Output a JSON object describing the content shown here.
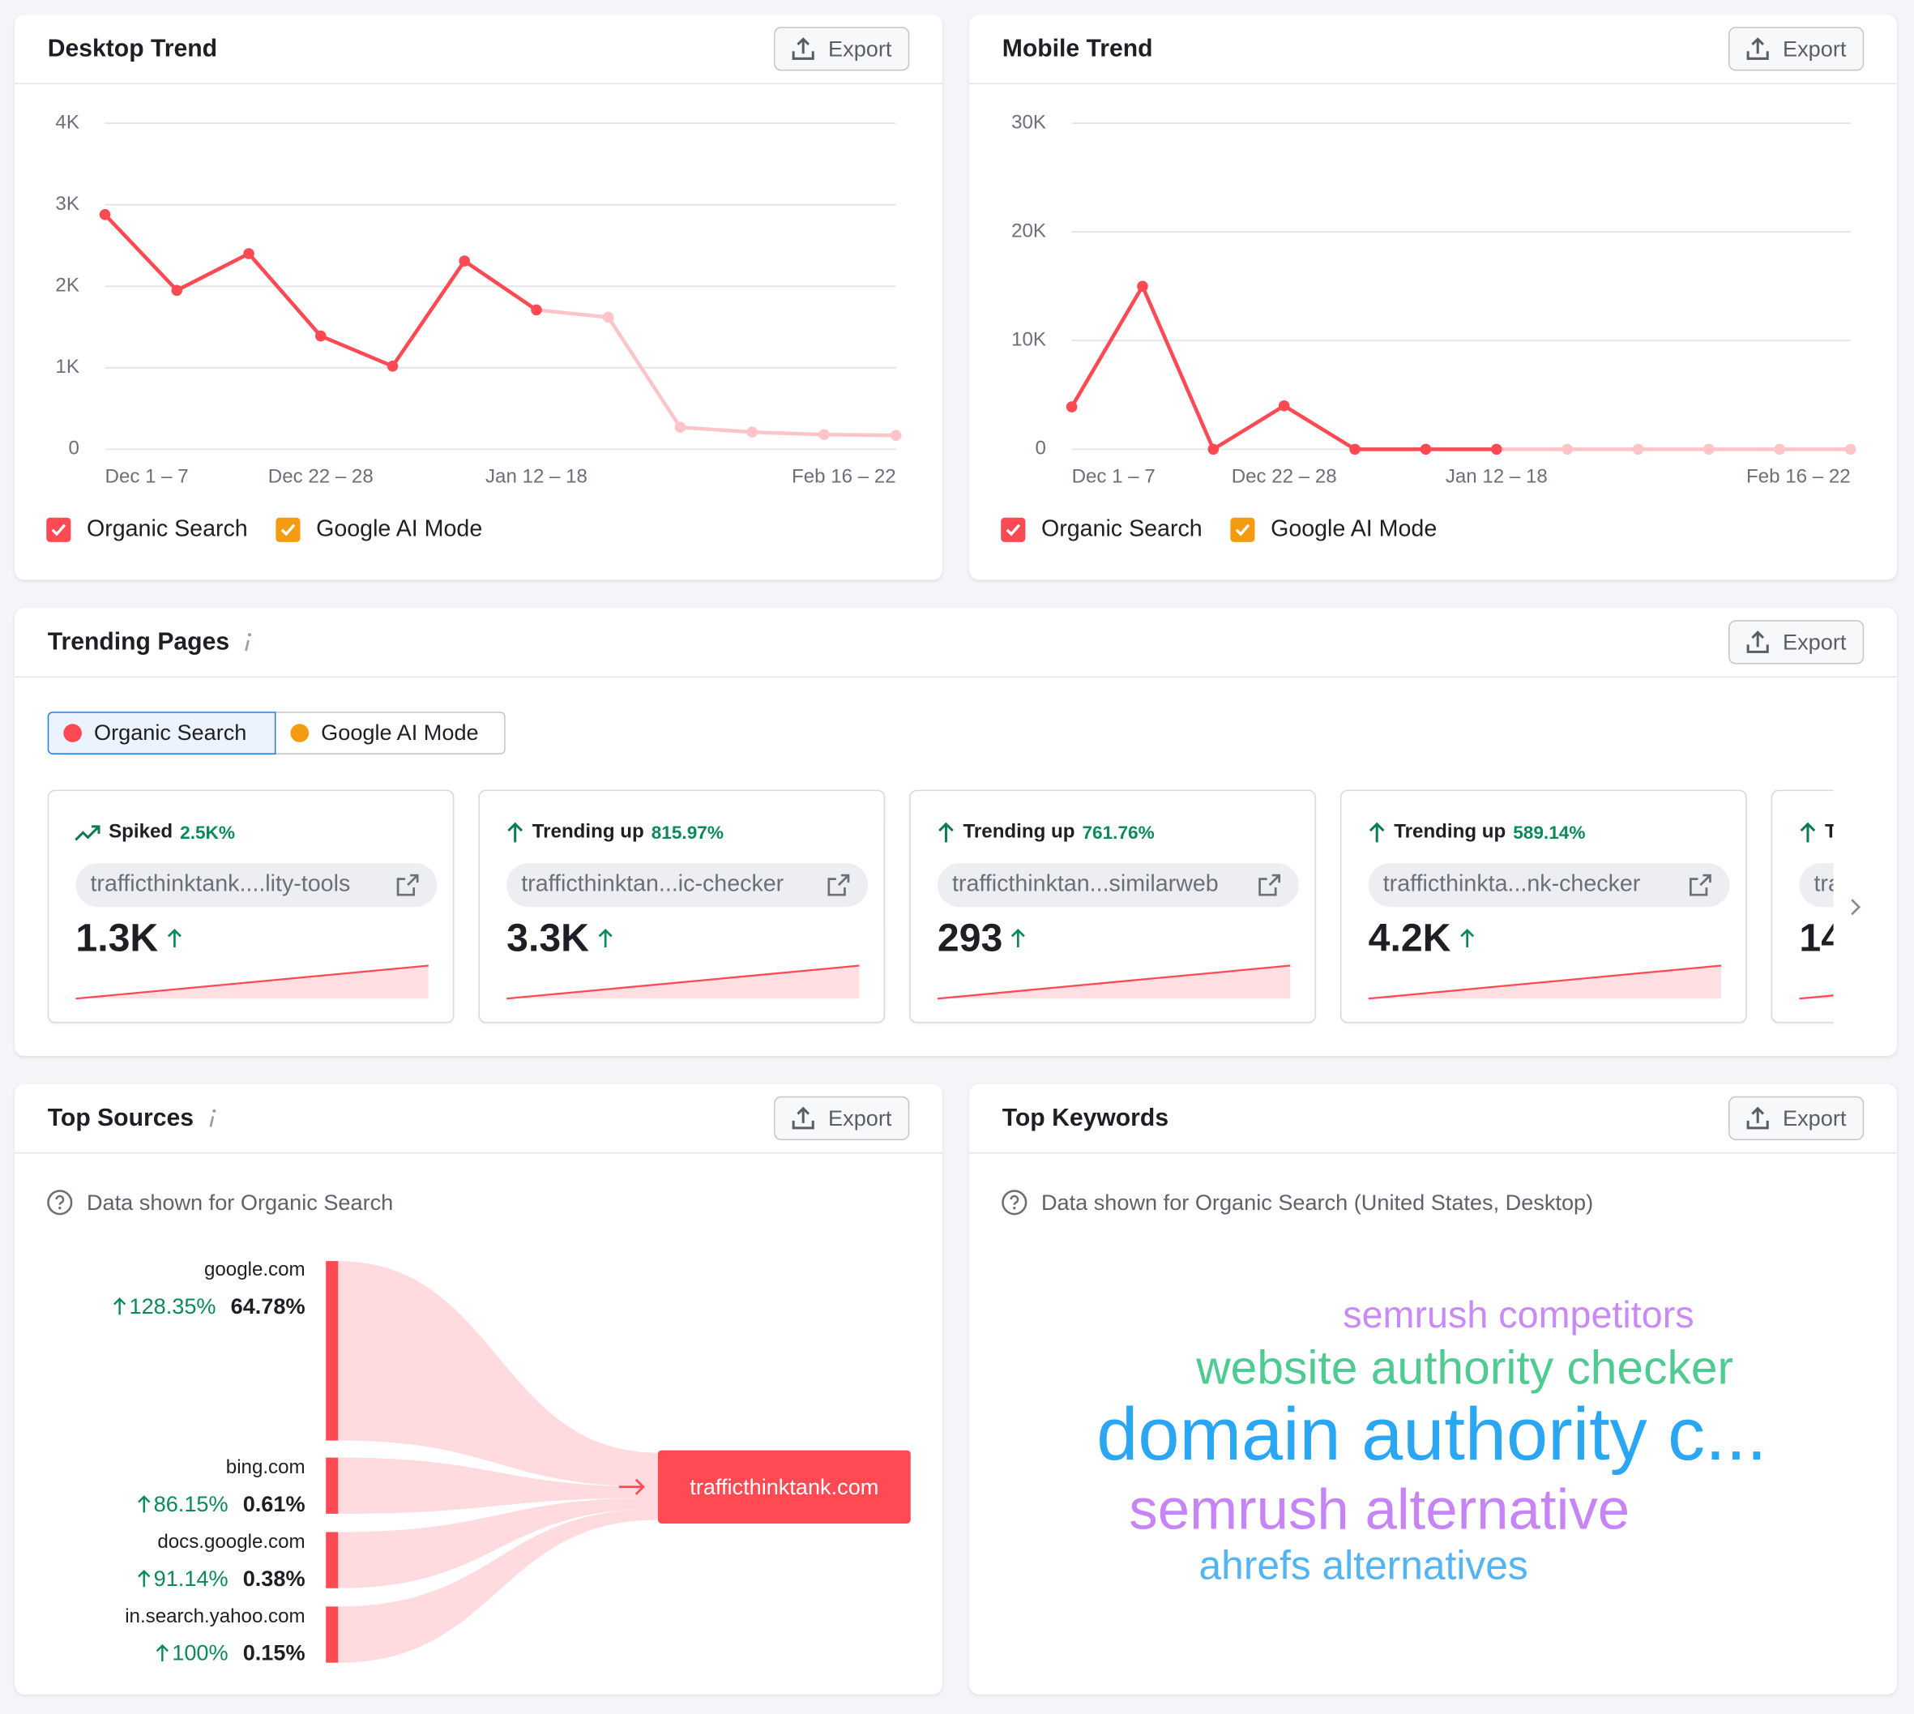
{
  "chart_data": [
    {
      "type": "line",
      "title": "Desktop Trend",
      "export": "Export",
      "categories": [
        "Dec 1 – 7",
        null,
        null,
        "Dec 22 – 28",
        null,
        null,
        "Jan 12 – 18",
        null,
        null,
        null,
        null,
        "Feb 16 – 22"
      ],
      "series": [
        {
          "name": "Organic Search",
          "color": "#ff4953",
          "faded_color": "#ffc4c8",
          "faded_from": 6,
          "values": [
            2880,
            1950,
            2400,
            1390,
            1020,
            2310,
            1710,
            1620,
            270,
            210,
            180,
            170
          ]
        },
        {
          "name": "Google AI Mode",
          "color": "#f39c12",
          "values": [
            null,
            null,
            null,
            null,
            null,
            null,
            null,
            null,
            null,
            null,
            null,
            null
          ]
        }
      ],
      "ylim": [
        0,
        4000
      ],
      "yticks": [
        0,
        {
          "value": 1000,
          "label": "1K"
        },
        {
          "value": 2000,
          "label": "2K"
        },
        {
          "value": 3000,
          "label": "3K"
        },
        {
          "value": 4000,
          "label": "4K"
        }
      ],
      "grid": true
    },
    {
      "type": "line",
      "title": "Mobile Trend",
      "export": "Export",
      "categories": [
        "Dec 1 – 7",
        null,
        null,
        "Dec 22 – 28",
        null,
        null,
        "Jan 12 – 18",
        null,
        null,
        null,
        null,
        "Feb 16 – 22"
      ],
      "series": [
        {
          "name": "Organic Search",
          "color": "#ff4953",
          "faded_color": "#ffc4c8",
          "faded_from": 6,
          "values": [
            3900,
            15000,
            0,
            4000,
            0,
            0,
            0,
            0,
            0,
            0,
            0,
            0
          ]
        },
        {
          "name": "Google AI Mode",
          "color": "#f39c12",
          "values": [
            null,
            null,
            null,
            null,
            null,
            null,
            null,
            null,
            null,
            null,
            null,
            null
          ]
        }
      ],
      "ylim": [
        0,
        30000
      ],
      "yticks": [
        0,
        {
          "value": 10000,
          "label": "10K"
        },
        {
          "value": 20000,
          "label": "20K"
        },
        {
          "value": 30000,
          "label": "30K"
        }
      ],
      "grid": true
    }
  ],
  "trending_pages": {
    "title": "Trending Pages",
    "export": "Export",
    "tabs": [
      "Organic Search",
      "Google AI Mode"
    ],
    "cards": [
      {
        "label": "Spiked",
        "change": "2.5K%",
        "url": "trafficthinktank....lity-tools",
        "value": "1.3K"
      },
      {
        "label": "Trending up",
        "change": "815.97%",
        "url": "trafficthinktan...ic-checker",
        "value": "3.3K"
      },
      {
        "label": "Trending up",
        "change": "761.76%",
        "url": "trafficthinktan...similarweb",
        "value": "293"
      },
      {
        "label": "Trending up",
        "change": "589.14%",
        "url": "trafficthinkta...nk-checker",
        "value": "4.2K"
      },
      {
        "label": "T",
        "url": "tra",
        "value": "14"
      }
    ]
  },
  "top_sources": {
    "title": "Top Sources",
    "export": "Export",
    "note": "Data shown for Organic Search",
    "sources": [
      {
        "name": "google.com",
        "change": "128.35%",
        "share": "64.78%"
      },
      {
        "name": "bing.com",
        "change": "86.15%",
        "share": "0.61%"
      },
      {
        "name": "docs.google.com",
        "change": "91.14%",
        "share": "0.38%"
      },
      {
        "name": "in.search.yahoo.com",
        "change": "100%",
        "share": "0.15%"
      }
    ],
    "target": "trafficthinktank.com"
  },
  "top_keywords": {
    "title": "Top Keywords",
    "export": "Export",
    "note": "Data shown for Organic Search (United States, Desktop)",
    "keywords": [
      "semrush competitors",
      "website authority checker",
      "domain authority c...",
      "semrush alternative",
      "ahrefs alternatives"
    ]
  }
}
